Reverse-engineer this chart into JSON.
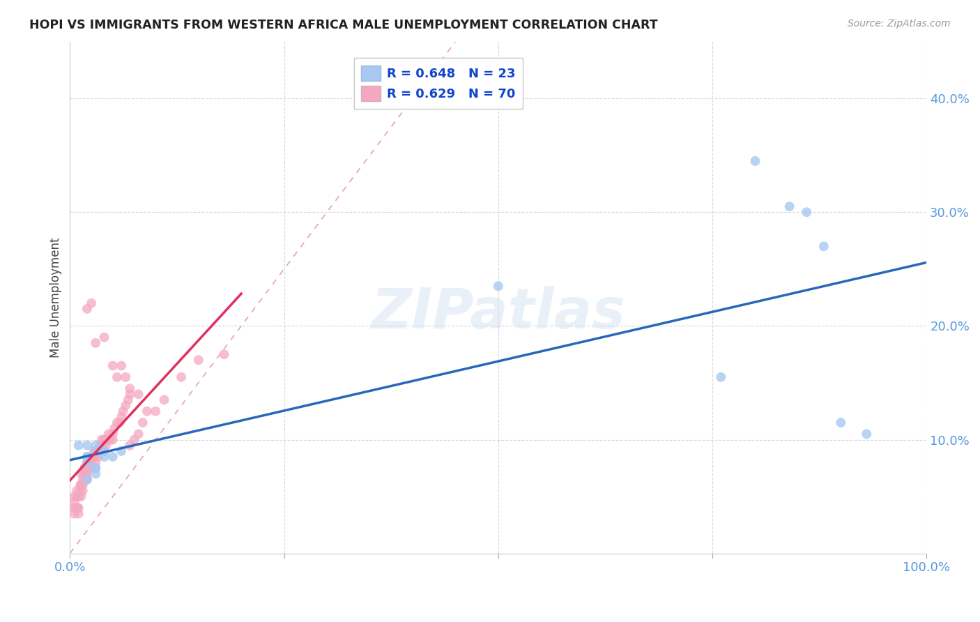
{
  "title": "HOPI VS IMMIGRANTS FROM WESTERN AFRICA MALE UNEMPLOYMENT CORRELATION CHART",
  "source": "Source: ZipAtlas.com",
  "ylabel": "Male Unemployment",
  "hopi_R": 0.648,
  "hopi_N": 23,
  "immig_R": 0.629,
  "immig_N": 70,
  "hopi_color": "#a8c8f0",
  "immig_color": "#f4a8c0",
  "hopi_line_color": "#2868b8",
  "immig_line_color": "#e03060",
  "diagonal_color": "#e8a0b0",
  "watermark": "ZIPatlas",
  "xlim": [
    0.0,
    1.0
  ],
  "ylim": [
    0.0,
    0.45
  ],
  "hopi_x": [
    0.01,
    0.02,
    0.02,
    0.03,
    0.03,
    0.04,
    0.04,
    0.05,
    0.06,
    0.02,
    0.02,
    0.03,
    0.03,
    0.02,
    0.03,
    0.5,
    0.76,
    0.8,
    0.84,
    0.86,
    0.88,
    0.9,
    0.93
  ],
  "hopi_y": [
    0.095,
    0.085,
    0.095,
    0.095,
    0.09,
    0.085,
    0.09,
    0.085,
    0.09,
    0.085,
    0.08,
    0.075,
    0.075,
    0.065,
    0.07,
    0.235,
    0.155,
    0.345,
    0.305,
    0.3,
    0.27,
    0.115,
    0.105
  ],
  "immig_x": [
    0.005,
    0.005,
    0.005,
    0.005,
    0.007,
    0.008,
    0.008,
    0.009,
    0.01,
    0.01,
    0.01,
    0.012,
    0.012,
    0.013,
    0.013,
    0.014,
    0.015,
    0.015,
    0.015,
    0.016,
    0.017,
    0.018,
    0.018,
    0.019,
    0.02,
    0.02,
    0.02,
    0.02,
    0.022,
    0.022,
    0.024,
    0.025,
    0.025,
    0.027,
    0.028,
    0.03,
    0.03,
    0.03,
    0.032,
    0.033,
    0.035,
    0.035,
    0.037,
    0.038,
    0.04,
    0.04,
    0.042,
    0.043,
    0.045,
    0.047,
    0.05,
    0.05,
    0.052,
    0.055,
    0.058,
    0.06,
    0.062,
    0.065,
    0.068,
    0.07,
    0.07,
    0.075,
    0.08,
    0.085,
    0.09,
    0.1,
    0.11,
    0.13,
    0.15,
    0.18
  ],
  "immig_y": [
    0.035,
    0.04,
    0.045,
    0.05,
    0.04,
    0.05,
    0.055,
    0.04,
    0.035,
    0.04,
    0.05,
    0.06,
    0.055,
    0.05,
    0.06,
    0.07,
    0.065,
    0.055,
    0.06,
    0.07,
    0.075,
    0.065,
    0.07,
    0.075,
    0.065,
    0.07,
    0.075,
    0.08,
    0.075,
    0.08,
    0.075,
    0.08,
    0.085,
    0.085,
    0.09,
    0.085,
    0.09,
    0.08,
    0.09,
    0.085,
    0.09,
    0.095,
    0.1,
    0.095,
    0.09,
    0.1,
    0.095,
    0.1,
    0.105,
    0.1,
    0.1,
    0.105,
    0.11,
    0.115,
    0.115,
    0.12,
    0.125,
    0.13,
    0.135,
    0.14,
    0.095,
    0.1,
    0.105,
    0.115,
    0.125,
    0.125,
    0.135,
    0.155,
    0.17,
    0.175
  ],
  "immig_extra_x": [
    0.02,
    0.025,
    0.03,
    0.04,
    0.05,
    0.055,
    0.06,
    0.065,
    0.07,
    0.08
  ],
  "immig_extra_y": [
    0.215,
    0.22,
    0.185,
    0.19,
    0.165,
    0.155,
    0.165,
    0.155,
    0.145,
    0.14
  ]
}
